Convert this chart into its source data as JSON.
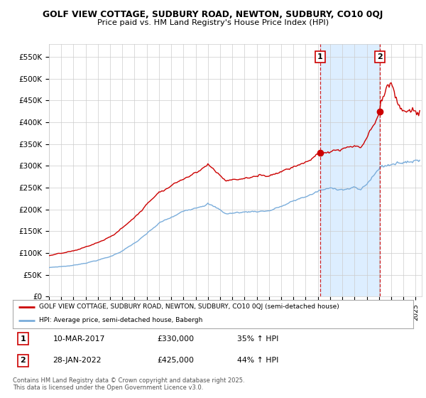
{
  "title1": "GOLF VIEW COTTAGE, SUDBURY ROAD, NEWTON, SUDBURY, CO10 0QJ",
  "title2": "Price paid vs. HM Land Registry's House Price Index (HPI)",
  "ylim": [
    0,
    580000
  ],
  "yticks": [
    0,
    50000,
    100000,
    150000,
    200000,
    250000,
    300000,
    350000,
    400000,
    450000,
    500000,
    550000
  ],
  "ytick_labels": [
    "£0",
    "£50K",
    "£100K",
    "£150K",
    "£200K",
    "£250K",
    "£300K",
    "£350K",
    "£400K",
    "£450K",
    "£500K",
    "£550K"
  ],
  "sale1_date_num": 2017.19,
  "sale1_price": 330000,
  "sale1_date_str": "10-MAR-2017",
  "sale1_pct": "35% ↑ HPI",
  "sale2_date_num": 2022.08,
  "sale2_price": 425000,
  "sale2_date_str": "28-JAN-2022",
  "sale2_pct": "44% ↑ HPI",
  "vline_color": "#cc0000",
  "legend_property_label": "GOLF VIEW COTTAGE, SUDBURY ROAD, NEWTON, SUDBURY, CO10 0QJ (semi-detached house)",
  "legend_hpi_label": "HPI: Average price, semi-detached house, Babergh",
  "property_line_color": "#cc0000",
  "hpi_line_color": "#7aaddb",
  "shade_color": "#ddeeff",
  "footnote": "Contains HM Land Registry data © Crown copyright and database right 2025.\nThis data is licensed under the Open Government Licence v3.0.",
  "background_color": "#ffffff",
  "grid_color": "#cccccc"
}
